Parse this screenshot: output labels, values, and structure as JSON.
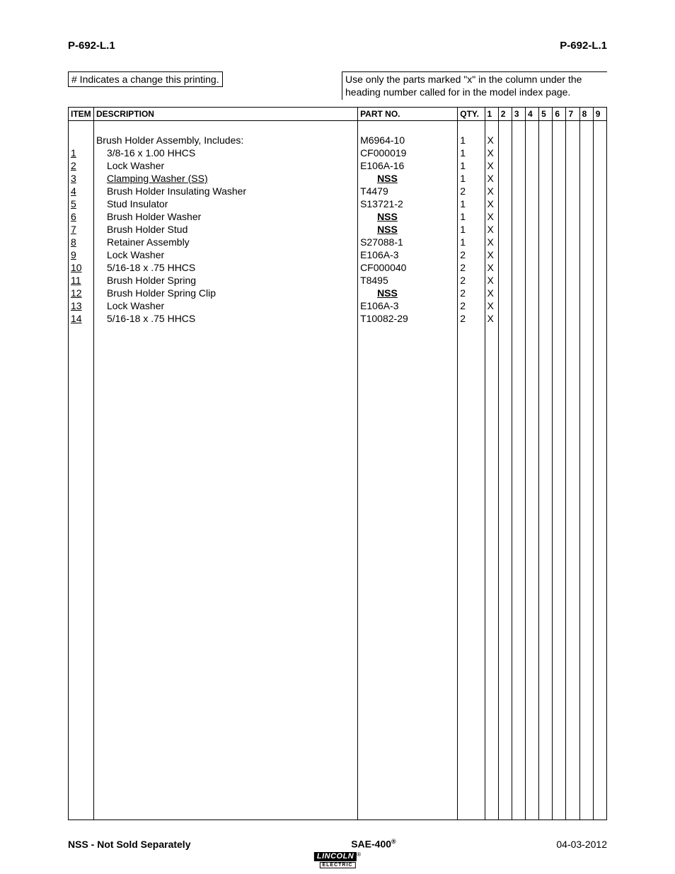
{
  "header": {
    "left": "P-692-L.1",
    "right": "P-692-L.1"
  },
  "notes": {
    "left": "# Indicates a change this printing.",
    "right": "Use only the parts marked \"x\" in the column under the heading number called for in the model index page."
  },
  "table": {
    "columns": [
      "ITEM",
      "DESCRIPTION",
      "PART NO.",
      "QTY.",
      "1",
      "2",
      "3",
      "4",
      "5",
      "6",
      "7",
      "8",
      "9"
    ],
    "rows": [
      {
        "item": "",
        "desc": "Brush Holder Assembly, Includes:",
        "indent": false,
        "part": "M6964-10",
        "part_style": "plain",
        "qty": "1",
        "marks": [
          "X",
          "",
          "",
          "",
          "",
          "",
          "",
          "",
          ""
        ]
      },
      {
        "item": "1",
        "desc": "3/8-16 x 1.00 HHCS",
        "indent": true,
        "part": "CF000019",
        "part_style": "plain",
        "qty": "1",
        "marks": [
          "X",
          "",
          "",
          "",
          "",
          "",
          "",
          "",
          ""
        ]
      },
      {
        "item": "2",
        "desc": "Lock Washer",
        "indent": true,
        "part": "E106A-16",
        "part_style": "plain",
        "qty": "1",
        "marks": [
          "X",
          "",
          "",
          "",
          "",
          "",
          "",
          "",
          ""
        ]
      },
      {
        "item": "3",
        "desc": "Clamping Washer (SS)",
        "indent": true,
        "part": "NSS",
        "part_style": "nss",
        "qty": "1",
        "marks": [
          "X",
          "",
          "",
          "",
          "",
          "",
          "",
          "",
          ""
        ],
        "desc_underline": true
      },
      {
        "item": "4",
        "desc": "Brush Holder Insulating Washer",
        "indent": true,
        "part": "T4479",
        "part_style": "plain",
        "qty": "2",
        "marks": [
          "X",
          "",
          "",
          "",
          "",
          "",
          "",
          "",
          ""
        ]
      },
      {
        "item": "5",
        "desc": "Stud Insulator",
        "indent": true,
        "part": "S13721-2",
        "part_style": "plain",
        "qty": "1",
        "marks": [
          "X",
          "",
          "",
          "",
          "",
          "",
          "",
          "",
          ""
        ]
      },
      {
        "item": "6",
        "desc": "Brush Holder Washer",
        "indent": true,
        "part": "NSS",
        "part_style": "nss",
        "qty": "1",
        "marks": [
          "X",
          "",
          "",
          "",
          "",
          "",
          "",
          "",
          ""
        ]
      },
      {
        "item": "7",
        "desc": "Brush Holder Stud",
        "indent": true,
        "part": "NSS",
        "part_style": "nss",
        "qty": "1",
        "marks": [
          "X",
          "",
          "",
          "",
          "",
          "",
          "",
          "",
          ""
        ]
      },
      {
        "item": "8",
        "desc": "Retainer Assembly",
        "indent": true,
        "part": "S27088-1",
        "part_style": "plain",
        "qty": "1",
        "marks": [
          "X",
          "",
          "",
          "",
          "",
          "",
          "",
          "",
          ""
        ]
      },
      {
        "item": "9",
        "desc": "Lock Washer",
        "indent": true,
        "part": "E106A-3",
        "part_style": "plain",
        "qty": "2",
        "marks": [
          "X",
          "",
          "",
          "",
          "",
          "",
          "",
          "",
          ""
        ]
      },
      {
        "item": "10",
        "desc": "5/16-18 x .75 HHCS",
        "indent": true,
        "part": "CF000040",
        "part_style": "plain",
        "qty": "2",
        "marks": [
          "X",
          "",
          "",
          "",
          "",
          "",
          "",
          "",
          ""
        ]
      },
      {
        "item": "11",
        "desc": "Brush Holder Spring",
        "indent": true,
        "part": "T8495",
        "part_style": "plain",
        "qty": "2",
        "marks": [
          "X",
          "",
          "",
          "",
          "",
          "",
          "",
          "",
          ""
        ]
      },
      {
        "item": "12",
        "desc": "Brush Holder Spring Clip",
        "indent": true,
        "part": "NSS",
        "part_style": "nss",
        "qty": "2",
        "marks": [
          "X",
          "",
          "",
          "",
          "",
          "",
          "",
          "",
          ""
        ]
      },
      {
        "item": "13",
        "desc": "Lock Washer",
        "indent": true,
        "part": "E106A-3",
        "part_style": "plain",
        "qty": "2",
        "marks": [
          "X",
          "",
          "",
          "",
          "",
          "",
          "",
          "",
          ""
        ]
      },
      {
        "item": "14",
        "desc": "5/16-18 x .75 HHCS",
        "indent": true,
        "part": "T10082-29",
        "part_style": "plain",
        "qty": "2",
        "marks": [
          "X",
          "",
          "",
          "",
          "",
          "",
          "",
          "",
          ""
        ]
      }
    ]
  },
  "footer": {
    "left": "NSS - Not Sold Separately",
    "center": "SAE-400",
    "center_sup": "®",
    "right": "04-03-2012"
  },
  "logo": {
    "brand": "LINCOLN",
    "reg": "®",
    "sub": "ELECTRIC"
  }
}
